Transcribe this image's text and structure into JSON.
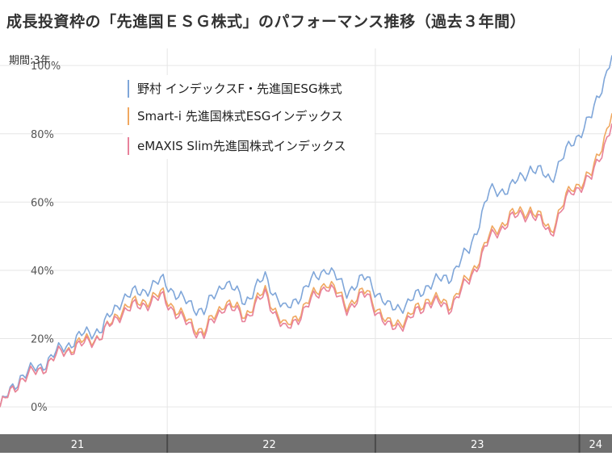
{
  "header": {
    "title": "成長投資枠の「先進国ＥＳＧ株式」のパフォーマンス推移（過去３年間）"
  },
  "period_label": "期間:3年",
  "colors": {
    "nomura": "#7fa6d9",
    "smarti": "#f0a860",
    "emaxis": "#e8829b",
    "axis_bar": "#6f6f6f"
  },
  "chart_data": {
    "type": "line",
    "title": "",
    "xlabel": "",
    "ylabel": "",
    "ylim": [
      -8,
      105
    ],
    "xlim": [
      0,
      150
    ],
    "yticks": [
      {
        "value": 0,
        "label": "0%"
      },
      {
        "value": 20,
        "label": "20%"
      },
      {
        "value": 40,
        "label": "40%"
      },
      {
        "value": 60,
        "label": "60%"
      },
      {
        "value": 80,
        "label": "80%"
      },
      {
        "value": 100,
        "label": "100%"
      }
    ],
    "xticks": [
      {
        "value": 19,
        "label": "21"
      },
      {
        "value": 66,
        "label": "22"
      },
      {
        "value": 117,
        "label": "23"
      },
      {
        "value": 146,
        "label": "24"
      }
    ],
    "xbreaks": [
      41,
      92,
      142
    ],
    "legend_position": "top-left",
    "grid": true,
    "series": [
      {
        "name": "野村 インデックスF・先進国ESG株式",
        "color": "#7fa6d9",
        "x": [
          0,
          5,
          10,
          15,
          20,
          25,
          30,
          35,
          40,
          45,
          50,
          55,
          60,
          65,
          70,
          75,
          80,
          85,
          90,
          95,
          100,
          105,
          110,
          115,
          120,
          125,
          130,
          135,
          140,
          145,
          150
        ],
        "values": [
          0,
          9,
          12,
          17,
          21,
          23,
          32,
          34,
          37,
          31,
          28,
          37,
          31,
          38,
          28,
          35,
          41,
          34,
          38,
          29,
          30,
          36,
          38,
          46,
          63,
          64,
          70,
          67,
          77,
          85,
          103
        ]
      },
      {
        "name": "Smart-i 先進国株式ESGインデックス",
        "color": "#f0a860",
        "x": [
          0,
          5,
          10,
          15,
          20,
          25,
          30,
          35,
          40,
          45,
          50,
          55,
          60,
          65,
          70,
          75,
          80,
          85,
          90,
          95,
          100,
          105,
          110,
          115,
          120,
          125,
          130,
          135,
          140,
          145,
          150
        ],
        "values": [
          0,
          8,
          11,
          16,
          19,
          21,
          29,
          31,
          33,
          26,
          22,
          31,
          27,
          34,
          23,
          30,
          37,
          30,
          34,
          24,
          26,
          32,
          30,
          38,
          50,
          56,
          58,
          52,
          64,
          68,
          86
        ]
      },
      {
        "name": "eMAXIS Slim先進国株式インデックス",
        "color": "#e8829b",
        "x": [
          0,
          5,
          10,
          15,
          20,
          25,
          30,
          35,
          40,
          45,
          50,
          55,
          60,
          65,
          70,
          75,
          80,
          85,
          90,
          95,
          100,
          105,
          110,
          115,
          120,
          125,
          130,
          135,
          140,
          145,
          150
        ],
        "values": [
          0,
          8,
          11,
          16,
          18,
          21,
          28,
          30,
          32,
          25,
          21,
          30,
          26,
          33,
          22,
          29,
          36,
          29,
          33,
          23,
          25,
          31,
          29,
          37,
          49,
          55,
          57,
          51,
          63,
          67,
          83
        ]
      }
    ]
  }
}
